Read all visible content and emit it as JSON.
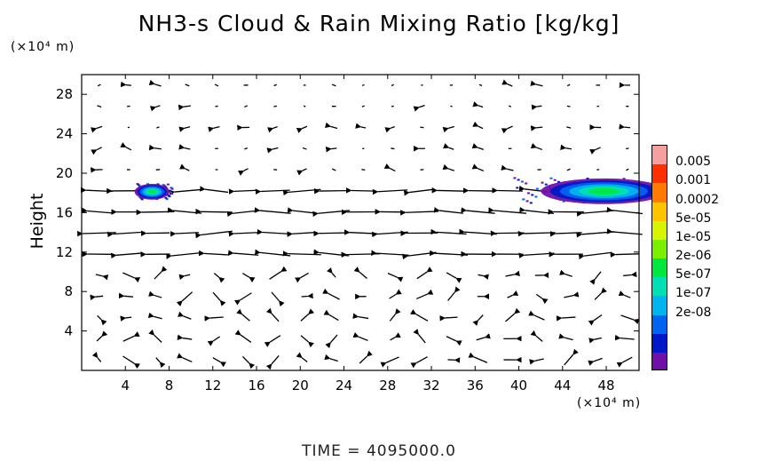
{
  "chart_data": {
    "type": "heatmap",
    "title": "NH3-s Cloud & Rain Mixing Ratio [kg/kg]",
    "x_unit_label": "(×10⁴ m)",
    "y_unit_label": "(×10⁴ m)",
    "ylabel": "Height",
    "xlim": [
      0,
      51
    ],
    "ylim": [
      0,
      30
    ],
    "xticks": [
      4,
      8,
      12,
      16,
      20,
      24,
      28,
      32,
      36,
      40,
      44,
      48
    ],
    "yticks": [
      4,
      8,
      12,
      16,
      20,
      24,
      28
    ],
    "colorbar": {
      "labels": [
        "0.005",
        "0.001",
        "0.0002",
        "5e-05",
        "1e-05",
        "2e-06",
        "5e-07",
        "1e-07",
        "2e-08"
      ],
      "colors": [
        "#ff3000",
        "#ff7a00",
        "#ffc400",
        "#d8f400",
        "#7af000",
        "#00e840",
        "#00e0b4",
        "#00b4f0",
        "#0064f0",
        "#0018c8",
        "#7010a8"
      ],
      "top_color": "#f4a0a0"
    },
    "cloud_regions": [
      {
        "x": [
          5.0,
          8.2
        ],
        "y": [
          17.4,
          19.0
        ]
      },
      {
        "x": [
          39.5,
          51.0
        ],
        "y": [
          17.0,
          19.6
        ]
      }
    ],
    "wind_field": "strong westward flow at heights 11-19; weak variable winds below 10 and above 20"
  },
  "footer": {
    "time_text": "TIME  =  4095000.0"
  },
  "colors": {
    "axis": "#000000",
    "arrow": "#000000",
    "background": "#ffffff"
  }
}
